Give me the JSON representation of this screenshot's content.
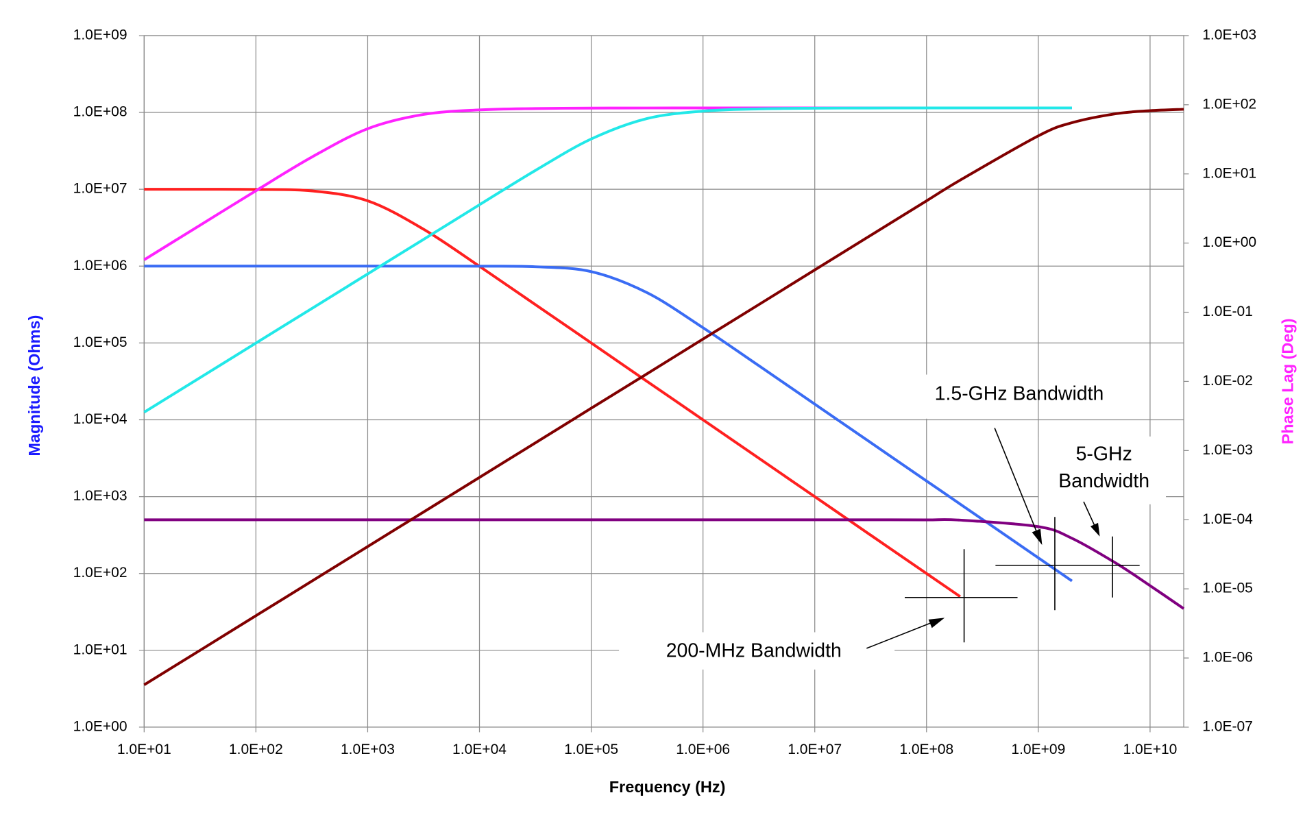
{
  "chart_data": {
    "type": "line",
    "x_label": "Frequency (Hz)",
    "y_label": "Magnitude (Ohms)",
    "y2_label": "Phase Lag (Deg)",
    "log_x": true,
    "log_y": true,
    "log_y2": true,
    "grid": true,
    "x": [
      10,
      31.6,
      100,
      316,
      1000,
      3160,
      10000,
      31600,
      100000,
      316000,
      1000000,
      3160000,
      10000000,
      31600000,
      100000000,
      200000000,
      1000000000,
      2000000000,
      5000000000,
      10000000000,
      20000000000
    ],
    "xlim": [
      10,
      20000000000
    ],
    "ylim": [
      1,
      1000000000
    ],
    "y2lim": [
      1e-07,
      1000
    ],
    "xticks": [
      {
        "value": 10,
        "label": "1.0E+01"
      },
      {
        "value": 100,
        "label": "1.0E+02"
      },
      {
        "value": 1000,
        "label": "1.0E+03"
      },
      {
        "value": 10000,
        "label": "1.0E+04"
      },
      {
        "value": 100000,
        "label": "1.0E+05"
      },
      {
        "value": 1000000,
        "label": "1.0E+06"
      },
      {
        "value": 10000000,
        "label": "1.0E+07"
      },
      {
        "value": 100000000,
        "label": "1.0E+08"
      },
      {
        "value": 1000000000,
        "label": "1.0E+09"
      },
      {
        "value": 10000000000,
        "label": "1.0E+10"
      }
    ],
    "yticks": [
      {
        "value": 1,
        "label": "1.0E+00"
      },
      {
        "value": 10,
        "label": "1.0E+01"
      },
      {
        "value": 100,
        "label": "1.0E+02"
      },
      {
        "value": 1000,
        "label": "1.0E+03"
      },
      {
        "value": 10000,
        "label": "1.0E+04"
      },
      {
        "value": 100000,
        "label": "1.0E+05"
      },
      {
        "value": 1000000,
        "label": "1.0E+06"
      },
      {
        "value": 10000000,
        "label": "1.0E+07"
      },
      {
        "value": 100000000,
        "label": "1.0E+08"
      },
      {
        "value": 1000000000,
        "label": "1.0E+09"
      }
    ],
    "y2ticks": [
      {
        "value": 1e-07,
        "label": "1.0E-07"
      },
      {
        "value": 1e-06,
        "label": "1.0E-06"
      },
      {
        "value": 1e-05,
        "label": "1.0E-05"
      },
      {
        "value": 0.0001,
        "label": "1.0E-04"
      },
      {
        "value": 0.001,
        "label": "1.0E-03"
      },
      {
        "value": 0.01,
        "label": "1.0E-02"
      },
      {
        "value": 0.1,
        "label": "1.0E-01"
      },
      {
        "value": 1,
        "label": "1.0E+00"
      },
      {
        "value": 10,
        "label": "1.0E+01"
      },
      {
        "value": 100,
        "label": "1.0E+02"
      },
      {
        "value": 1000,
        "label": "1.0E+03"
      }
    ],
    "series": [
      {
        "color": "#ff2020",
        "values": [
          10000000,
          10000000,
          9950000,
          9530000,
          7070000,
          3020000,
          995000,
          316000,
          100000,
          31600,
          10000,
          3162,
          1000,
          316,
          100,
          50,
          null,
          null,
          null,
          null,
          null
        ]
      },
      {
        "color": "#3a6cf4",
        "values": [
          1000000,
          1000000,
          1000000,
          1000000,
          1000000,
          999800,
          998000,
          981000,
          848000,
          451000,
          158000,
          50600,
          16000,
          5060,
          1600,
          800,
          160,
          80,
          null,
          null,
          null
        ]
      },
      {
        "color": "#800080",
        "values": [
          500,
          500,
          500,
          500,
          500,
          500,
          500,
          500,
          500,
          500,
          500,
          500,
          500,
          500,
          498.7,
          495,
          407,
          287,
          135,
          69.4,
          34.9
        ]
      },
      {
        "color": "#ff22ff",
        "axis": "y2",
        "values": [
          0.573,
          1.81,
          5.71,
          17.5,
          45,
          72.4,
          84.3,
          88.2,
          89.4,
          89.8,
          89.9,
          90,
          90,
          90,
          90,
          90,
          90,
          90,
          null,
          null,
          null
        ]
      },
      {
        "color": "#22e8e8",
        "axis": "y2",
        "values": [
          0.00358,
          0.0113,
          0.0358,
          0.113,
          0.358,
          1.13,
          3.58,
          11.2,
          32,
          63.2,
          80.9,
          87.1,
          89.1,
          89.7,
          89.9,
          90,
          90,
          90,
          null,
          null,
          null
        ]
      },
      {
        "color": "#800000",
        "axis": "y2",
        "values": [
          4.09e-07,
          1.29e-06,
          4.09e-06,
          1.29e-05,
          4.09e-05,
          0.000129,
          0.000409,
          0.00129,
          0.00409,
          0.0129,
          0.0409,
          0.129,
          0.409,
          1.29,
          4.08,
          8.13,
          35.5,
          55,
          74.4,
          82,
          86
        ]
      }
    ],
    "annotations": [
      "1.5-GHz Bandwidth",
      "5-GHz",
      "Bandwidth",
      "200-MHz Bandwidth"
    ]
  }
}
